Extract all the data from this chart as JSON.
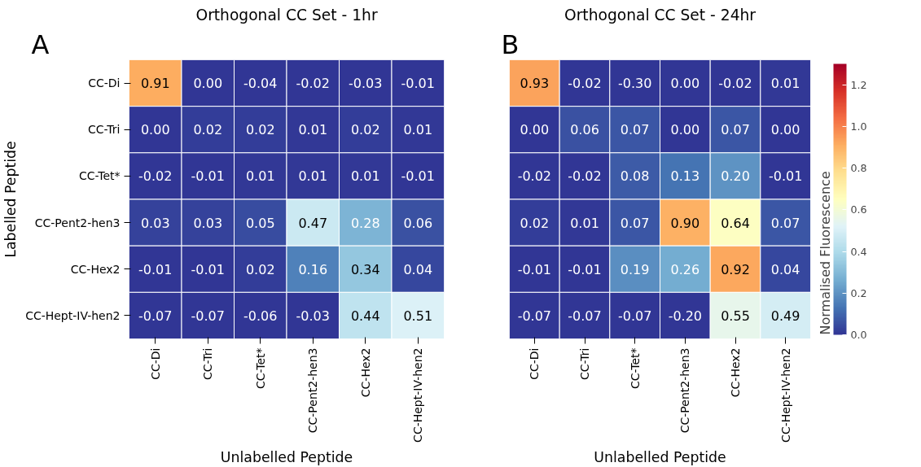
{
  "chart_data": [
    {
      "type": "heatmap",
      "title": "Orthogonal CC Set - 1hr",
      "xlabel": "Unlabelled Peptide",
      "ylabel": "Labelled Peptide",
      "annotations": [
        "A"
      ],
      "categories": [
        "CC-Di",
        "CC-Tri",
        "CC-Tet*",
        "CC-Pent2-hen3",
        "CC-Hex2",
        "CC-Hept-IV-hen2"
      ],
      "y_categories": [
        "CC-Di",
        "CC-Tri",
        "CC-Tet*",
        "CC-Pent2-hen3",
        "CC-Hex2",
        "CC-Hept-IV-hen2"
      ],
      "cells": [
        [
          0.91,
          0.0,
          -0.04,
          -0.02,
          -0.03,
          -0.01
        ],
        [
          0.0,
          0.02,
          0.02,
          0.01,
          0.02,
          0.01
        ],
        [
          -0.02,
          -0.01,
          0.01,
          0.01,
          0.01,
          -0.01
        ],
        [
          0.03,
          0.03,
          0.05,
          0.47,
          0.28,
          0.06
        ],
        [
          -0.01,
          -0.01,
          0.02,
          0.16,
          0.34,
          0.04
        ],
        [
          -0.07,
          -0.07,
          -0.06,
          -0.03,
          0.44,
          0.51
        ]
      ],
      "cell_labels": [
        [
          "0.91",
          "0.00",
          "-0.04",
          "-0.02",
          "-0.03",
          "-0.01"
        ],
        [
          "0.00",
          "0.02",
          "0.02",
          "0.01",
          "0.02",
          "0.01"
        ],
        [
          "-0.02",
          "-0.01",
          "0.01",
          "0.01",
          "0.01",
          "-0.01"
        ],
        [
          "0.03",
          "0.03",
          "0.05",
          "0.47",
          "0.28",
          "0.06"
        ],
        [
          "-0.01",
          "-0.01",
          "0.02",
          "0.16",
          "0.34",
          "0.04"
        ],
        [
          "-0.07",
          "-0.07",
          "-0.06",
          "-0.03",
          "0.44",
          "0.51"
        ]
      ],
      "data_labels": true
    },
    {
      "type": "heatmap",
      "title": "Orthogonal CC Set - 24hr",
      "xlabel": "Unlabelled Peptide",
      "clabel": "Normalised Fluorescence",
      "annotations": [
        "B"
      ],
      "tick_labels": "x",
      "categories": [
        "CC-Di",
        "CC-Tri",
        "CC-Tet*",
        "CC-Pent2-hen3",
        "CC-Hex2",
        "CC-Hept-IV-hen2"
      ],
      "y_categories": [
        null,
        null,
        null,
        null,
        null,
        null
      ],
      "cells": [
        [
          0.93,
          -0.02,
          -0.3,
          0.0,
          -0.02,
          0.01
        ],
        [
          0.0,
          0.06,
          0.07,
          0.0,
          0.07,
          0.0
        ],
        [
          -0.02,
          -0.02,
          0.08,
          0.13,
          0.2,
          -0.01
        ],
        [
          0.02,
          0.01,
          0.07,
          0.9,
          0.64,
          0.07
        ],
        [
          -0.01,
          -0.01,
          0.19,
          0.26,
          0.92,
          0.04
        ],
        [
          -0.07,
          -0.07,
          -0.07,
          -0.2,
          0.55,
          0.49
        ]
      ],
      "cell_labels": [
        [
          "0.93",
          "-0.02",
          "-0.30",
          "0.00",
          "-0.02",
          "0.01"
        ],
        [
          "0.00",
          "0.06",
          "0.07",
          "0.00",
          "0.07",
          "0.00"
        ],
        [
          "-0.02",
          "-0.02",
          "0.08",
          "0.13",
          "0.20",
          "-0.01"
        ],
        [
          "0.02",
          "0.01",
          "0.07",
          "0.90",
          "0.64",
          "0.07"
        ],
        [
          "-0.01",
          "-0.01",
          "0.19",
          "0.26",
          "0.92",
          "0.04"
        ],
        [
          "-0.07",
          "-0.07",
          "-0.07",
          "-0.20",
          "0.55",
          "0.49"
        ]
      ],
      "clim": [
        0,
        1.3
      ],
      "cticks": [
        {
          "value": 0,
          "label": "0.0"
        },
        {
          "value": 0.2,
          "label": "0.2"
        },
        {
          "value": 0.4,
          "label": "0.4"
        },
        {
          "value": 0.6,
          "label": "0.6"
        },
        {
          "value": 0.8,
          "label": "0.8"
        },
        {
          "value": 1,
          "label": "1.0"
        },
        {
          "value": 1.2,
          "label": "1.2"
        }
      ],
      "data_labels": true
    }
  ]
}
